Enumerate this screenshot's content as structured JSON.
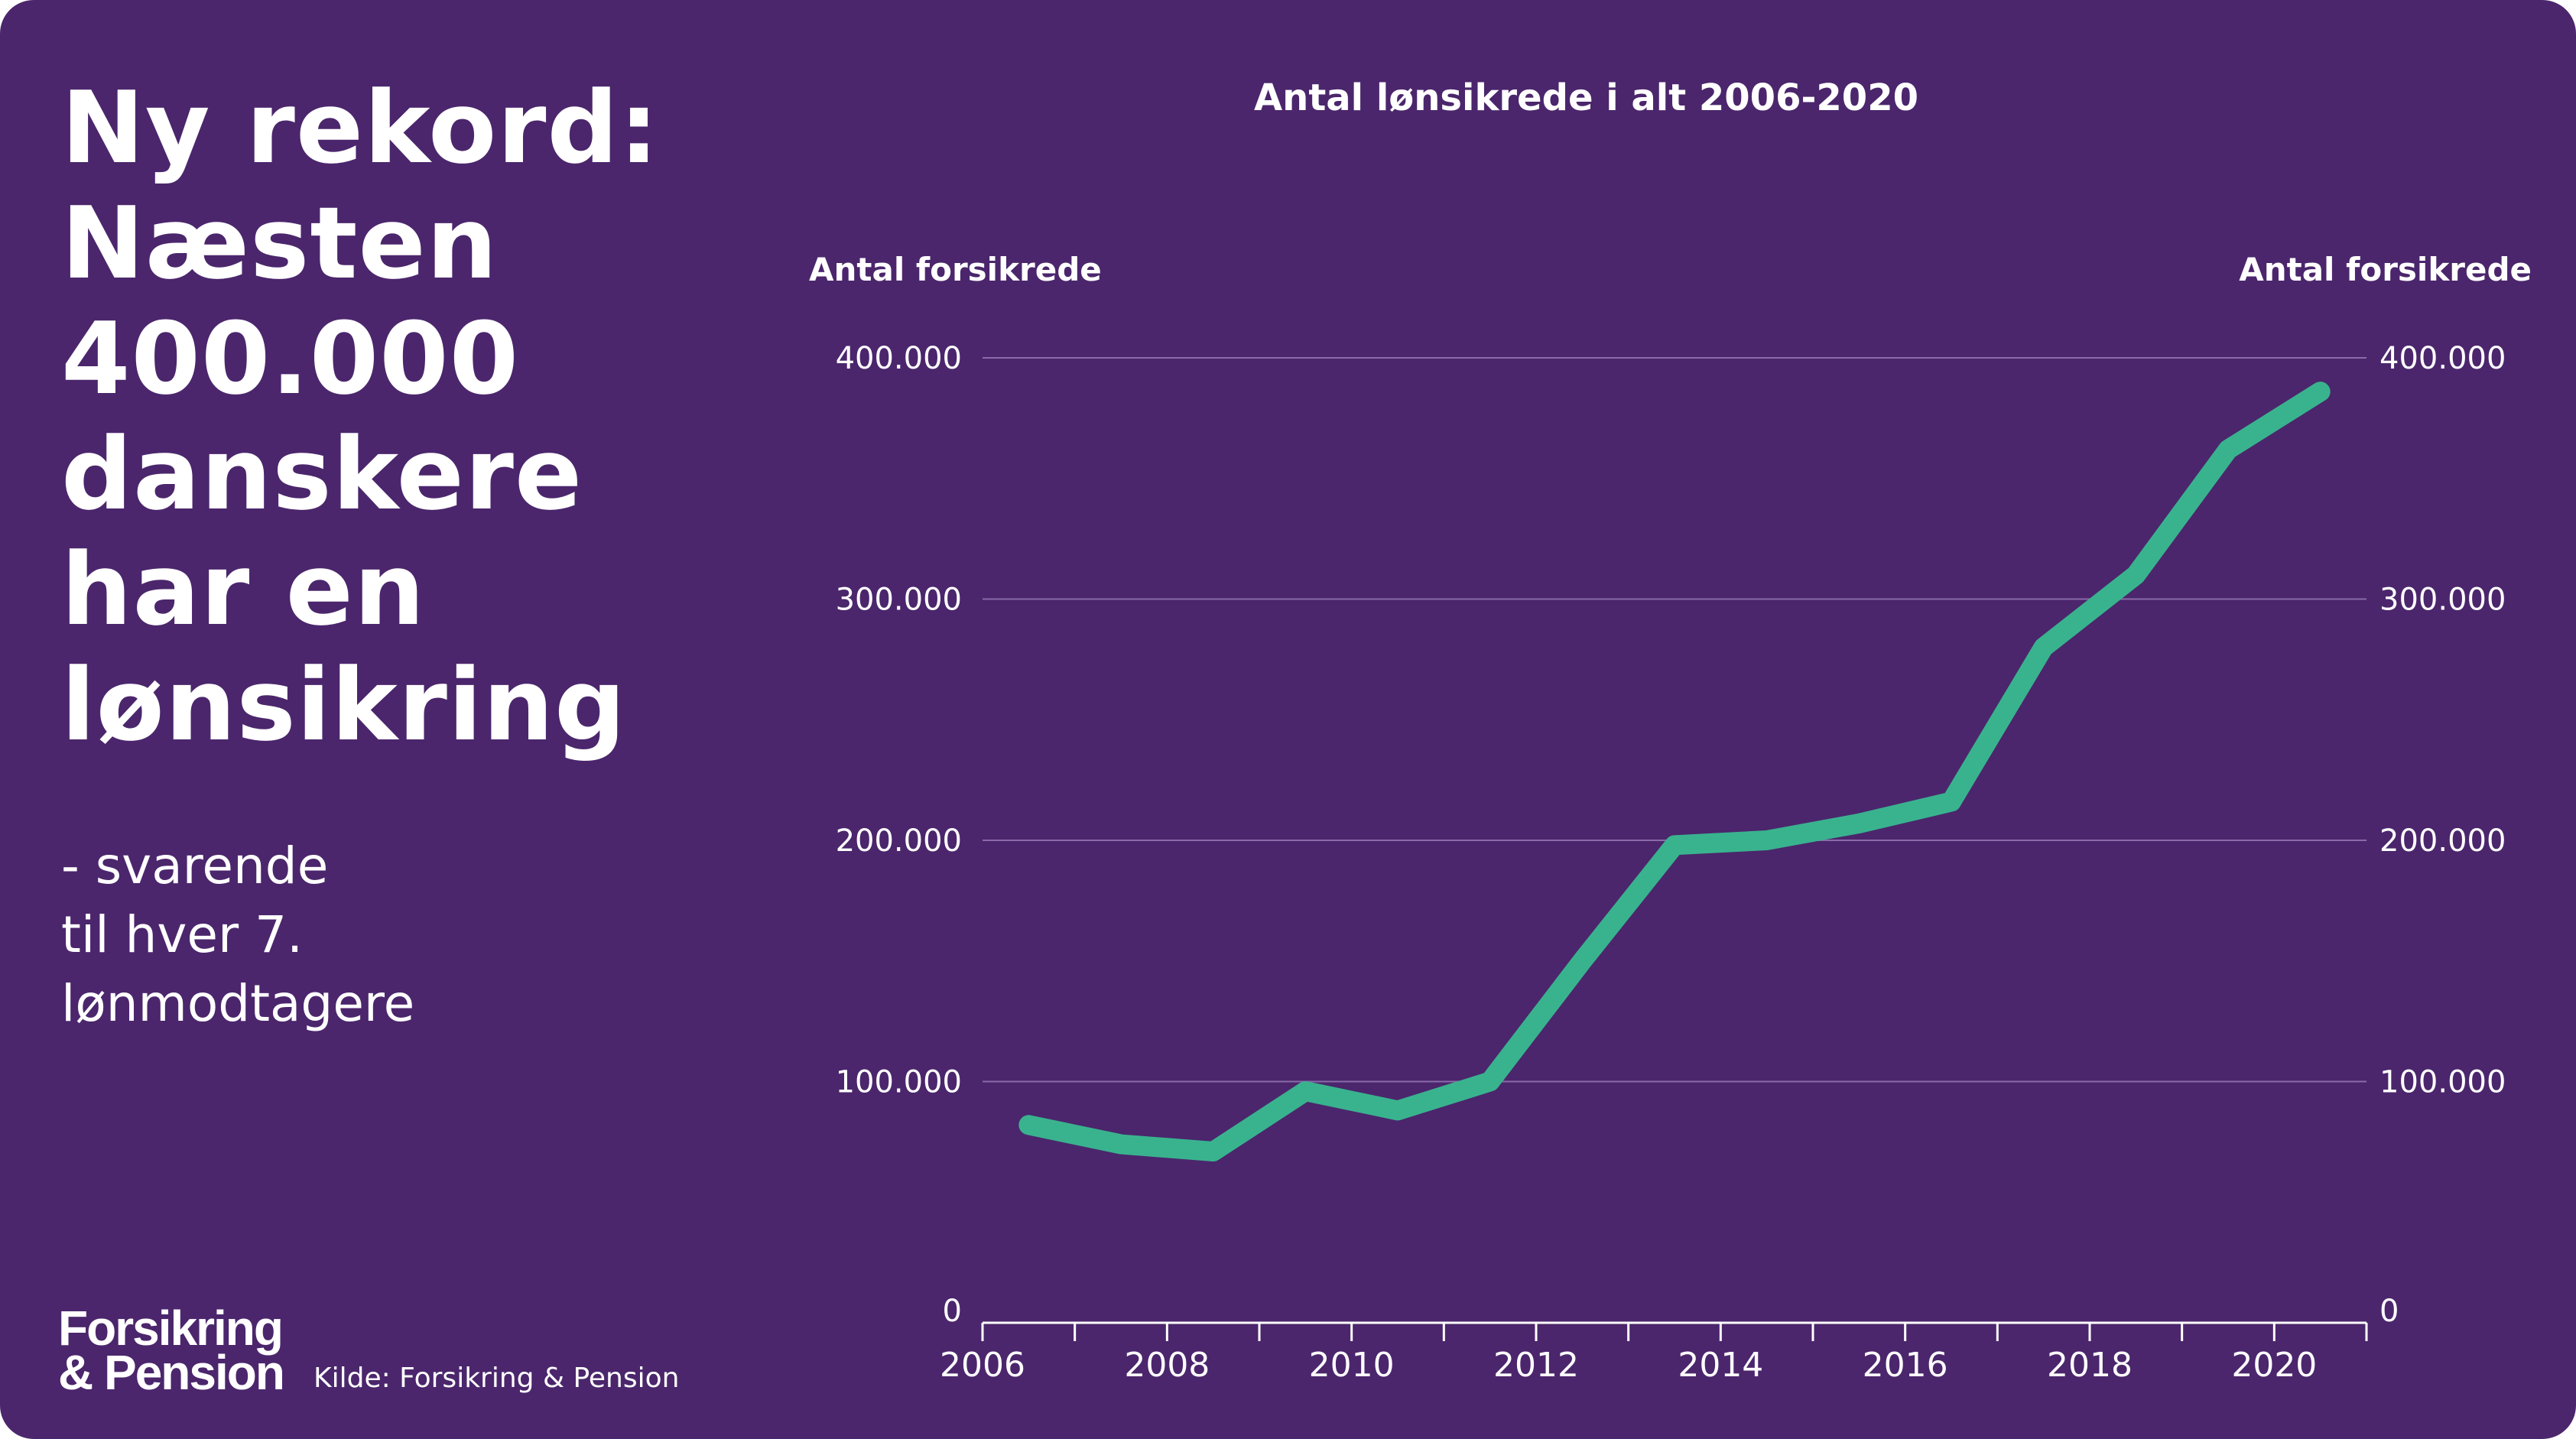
{
  "headline": [
    "Ny rekord:",
    "Næsten",
    "400.000",
    "danskere",
    "har en",
    "lønsikring"
  ],
  "subtitle": [
    "- svarende",
    "til hver 7.",
    "lønmodtagere"
  ],
  "source": "Kilde: Forsikring & Pension",
  "logo": [
    "Forsikring",
    "& Pension"
  ],
  "colors": {
    "background": "#4b266c",
    "line": "#39b38e",
    "text": "#ffffff",
    "gridline": "#8a6aa8"
  },
  "chart_data": {
    "type": "line",
    "title": "Antal lønsikrede i alt 2006-2020",
    "ylabel": "Antal forsikrede",
    "ylabel_right": "Antal forsikrede",
    "xlabel": "",
    "x": [
      2006,
      2007,
      2008,
      2009,
      2010,
      2011,
      2012,
      2013,
      2014,
      2015,
      2016,
      2017,
      2018,
      2019,
      2020
    ],
    "values": [
      82000,
      74000,
      71000,
      96000,
      88000,
      100000,
      150000,
      198000,
      200000,
      207000,
      216000,
      280000,
      310000,
      362000,
      386000
    ],
    "x_ticks": [
      "2006",
      "2008",
      "2010",
      "2012",
      "2014",
      "2016",
      "2018",
      "2020"
    ],
    "y_ticks": [
      "0",
      "100.000",
      "200.000",
      "300.000",
      "400.000"
    ],
    "y_tick_values": [
      0,
      100000,
      200000,
      300000,
      400000
    ],
    "ylim": [
      0,
      400000
    ],
    "xlim": [
      2006,
      2021
    ],
    "grid": true,
    "legend": "none"
  }
}
